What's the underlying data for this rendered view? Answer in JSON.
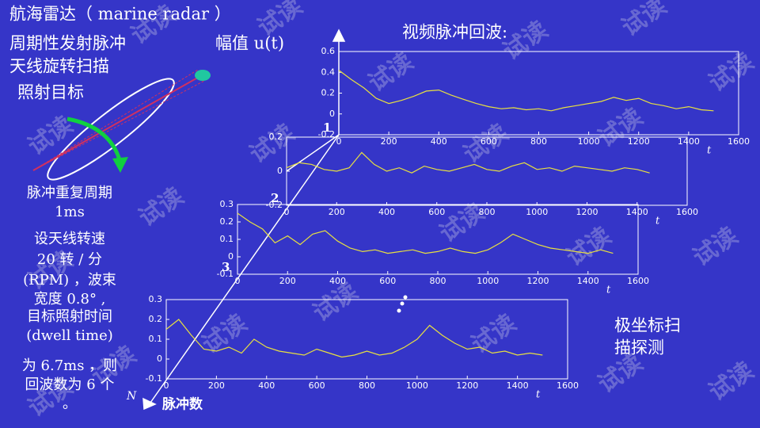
{
  "title": "航海雷达（ marine radar ）",
  "left_text": [
    "周期性发射脉冲",
    "天线旋转扫描",
    "照射目标",
    "脉冲重复周期",
    "1ms",
    "设天线转速",
    "20 转 / 分",
    "(RPM) ，波束",
    "宽度 0.8° ,",
    "目标照射时间",
    "(dwell time)",
    "为 6.7ms ，则",
    "回波数为 6 个",
    "。"
  ],
  "amplitude_label": "幅值 u(t)",
  "echo_title": "视频脉冲回波:",
  "polar_text": [
    "极坐标扫",
    "描探测"
  ],
  "pulse_axis_label": "脉冲数",
  "pulse_axis_symbol": "N",
  "watermark": "试读",
  "chart_data": [
    {
      "type": "line",
      "label": "1",
      "xlabel": "t",
      "color": "#e8e040",
      "xlim": [
        0,
        1600
      ],
      "xticks": [
        0,
        200,
        400,
        600,
        800,
        1000,
        1200,
        1400,
        1600
      ],
      "ylim": [
        -0.2,
        0.6
      ],
      "yticks": [
        -0.2,
        0,
        0.2,
        0.4,
        0.6
      ],
      "x": [
        0,
        50,
        100,
        150,
        200,
        250,
        300,
        350,
        400,
        450,
        500,
        550,
        600,
        650,
        700,
        750,
        800,
        850,
        900,
        950,
        1000,
        1050,
        1100,
        1150,
        1200,
        1250,
        1300,
        1350,
        1400,
        1450,
        1500
      ],
      "values": [
        0.42,
        0.33,
        0.25,
        0.15,
        0.1,
        0.13,
        0.17,
        0.22,
        0.23,
        0.18,
        0.14,
        0.1,
        0.07,
        0.05,
        0.06,
        0.04,
        0.05,
        0.03,
        0.06,
        0.08,
        0.1,
        0.12,
        0.16,
        0.13,
        0.15,
        0.1,
        0.08,
        0.05,
        0.07,
        0.04,
        0.03
      ]
    },
    {
      "type": "line",
      "label": "2",
      "xlabel": "t",
      "color": "#e8e040",
      "xlim": [
        0,
        1600
      ],
      "xticks": [
        0,
        200,
        400,
        600,
        800,
        1000,
        1200,
        1400,
        1600
      ],
      "ylim": [
        -0.2,
        0.2
      ],
      "yticks": [
        -0.2,
        0,
        0.2
      ],
      "x": [
        0,
        50,
        100,
        150,
        200,
        250,
        300,
        350,
        400,
        450,
        500,
        550,
        600,
        650,
        700,
        750,
        800,
        850,
        900,
        950,
        1000,
        1050,
        1100,
        1150,
        1200,
        1250,
        1300,
        1350,
        1400,
        1450
      ],
      "values": [
        0.02,
        0.05,
        0.04,
        0.01,
        0,
        0.02,
        0.11,
        0.04,
        0,
        0.02,
        -0.01,
        0.03,
        0.01,
        0,
        0.02,
        0.04,
        0.01,
        0,
        0.03,
        0.05,
        0.01,
        0.02,
        0,
        0.03,
        0.02,
        0.01,
        0,
        0.02,
        0.01,
        -0.01
      ]
    },
    {
      "type": "line",
      "label": "3",
      "xlabel": "t",
      "color": "#e8e040",
      "xlim": [
        0,
        1600
      ],
      "xticks": [
        0,
        200,
        400,
        600,
        800,
        1000,
        1200,
        1400,
        1600
      ],
      "ylim": [
        -0.1,
        0.3
      ],
      "yticks": [
        -0.1,
        0,
        0.1,
        0.2,
        0.3
      ],
      "x": [
        0,
        50,
        100,
        150,
        200,
        250,
        300,
        350,
        400,
        450,
        500,
        550,
        600,
        650,
        700,
        750,
        800,
        850,
        900,
        950,
        1000,
        1050,
        1100,
        1150,
        1200,
        1250,
        1300,
        1350,
        1400,
        1450,
        1500
      ],
      "values": [
        0.25,
        0.2,
        0.16,
        0.08,
        0.12,
        0.07,
        0.13,
        0.15,
        0.09,
        0.05,
        0.03,
        0.04,
        0.02,
        0.03,
        0.04,
        0.02,
        0.03,
        0.05,
        0.03,
        0.02,
        0.04,
        0.08,
        0.13,
        0.1,
        0.07,
        0.05,
        0.04,
        0.03,
        0.02,
        0.04,
        0.02
      ]
    },
    {
      "type": "line",
      "xlabel": "t",
      "color": "#e8e040",
      "xlim": [
        0,
        1600
      ],
      "xticks": [
        0,
        200,
        400,
        600,
        800,
        1000,
        1200,
        1400,
        1600
      ],
      "ylim": [
        -0.1,
        0.3
      ],
      "yticks": [
        -0.1,
        0,
        0.1,
        0.2,
        0.3
      ],
      "x": [
        0,
        50,
        100,
        150,
        200,
        250,
        300,
        350,
        400,
        450,
        500,
        550,
        600,
        650,
        700,
        750,
        800,
        850,
        900,
        950,
        1000,
        1050,
        1100,
        1150,
        1200,
        1250,
        1300,
        1350,
        1400,
        1450,
        1500
      ],
      "values": [
        0.15,
        0.2,
        0.12,
        0.05,
        0.04,
        0.06,
        0.03,
        0.1,
        0.06,
        0.04,
        0.03,
        0.02,
        0.05,
        0.03,
        0.01,
        0.02,
        0.04,
        0.02,
        0.03,
        0.06,
        0.1,
        0.17,
        0.12,
        0.08,
        0.05,
        0.06,
        0.03,
        0.04,
        0.02,
        0.03,
        0.02
      ]
    }
  ]
}
